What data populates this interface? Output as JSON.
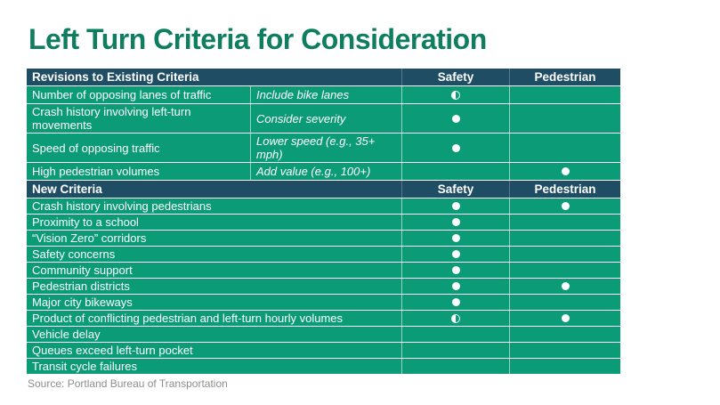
{
  "title": "Left Turn Criteria for Consideration",
  "source": "Source: Portland Bureau of Transportation",
  "colors": {
    "title_green": "#0F7D5F",
    "header_navy": "#1F4D64",
    "row_green": "#0C9B77",
    "text_white": "#FFFFFF",
    "source_gray": "#8E8E8E"
  },
  "icons": {
    "full": "filled-circle-icon",
    "half": "half-filled-circle-icon"
  },
  "table": {
    "sections": [
      {
        "header": {
          "label": "Revisions to Existing Criteria",
          "safety": "Safety",
          "pedestrian": "Pedestrian"
        },
        "rows": [
          {
            "criteria": "Number of opposing lanes of traffic",
            "note": "Include bike lanes",
            "safety": "half",
            "pedestrian": "none"
          },
          {
            "criteria": "Crash history involving left-turn movements",
            "note": "Consider severity",
            "safety": "full",
            "pedestrian": "none"
          },
          {
            "criteria": "Speed of opposing traffic",
            "note": "Lower speed (e.g., 35+ mph)",
            "safety": "full",
            "pedestrian": "none"
          },
          {
            "criteria": "High pedestrian volumes",
            "note": "Add value (e.g., 100+)",
            "safety": "none",
            "pedestrian": "full"
          }
        ]
      },
      {
        "header": {
          "label": "New Criteria",
          "safety": "Safety",
          "pedestrian": "Pedestrian"
        },
        "rows": [
          {
            "criteria": "Crash history involving pedestrians",
            "note": "",
            "safety": "full",
            "pedestrian": "full"
          },
          {
            "criteria": "Proximity to a school",
            "note": "",
            "safety": "full",
            "pedestrian": "none"
          },
          {
            "criteria": "“Vision Zero” corridors",
            "note": "",
            "safety": "full",
            "pedestrian": "none"
          },
          {
            "criteria": "Safety concerns",
            "note": "",
            "safety": "full",
            "pedestrian": "none"
          },
          {
            "criteria": "Community support",
            "note": "",
            "safety": "full",
            "pedestrian": "none"
          },
          {
            "criteria": "Pedestrian districts",
            "note": "",
            "safety": "full",
            "pedestrian": "full"
          },
          {
            "criteria": "Major city bikeways",
            "note": "",
            "safety": "full",
            "pedestrian": "none"
          },
          {
            "criteria": "Product of conflicting pedestrian and left-turn hourly volumes",
            "note": "",
            "safety": "half",
            "pedestrian": "full"
          },
          {
            "criteria": "Vehicle delay",
            "note": "",
            "safety": "none",
            "pedestrian": "none"
          },
          {
            "criteria": "Queues exceed left-turn pocket",
            "note": "",
            "safety": "none",
            "pedestrian": "none"
          },
          {
            "criteria": "Transit cycle failures",
            "note": "",
            "safety": "none",
            "pedestrian": "none"
          }
        ]
      }
    ]
  }
}
